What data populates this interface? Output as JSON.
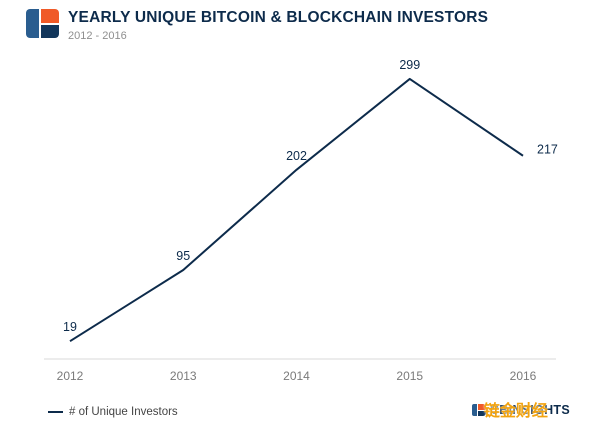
{
  "header": {
    "title": "YEARLY UNIQUE BITCOIN & BLOCKCHAIN INVESTORS",
    "subtitle": "2012 - 2016"
  },
  "chart_data": {
    "type": "line",
    "categories": [
      "2012",
      "2013",
      "2014",
      "2015",
      "2016"
    ],
    "series": [
      {
        "name": "# of Unique Investors",
        "values": [
          19,
          95,
          202,
          299,
          217
        ]
      }
    ],
    "title": "YEARLY UNIQUE BITCOIN & BLOCKCHAIN INVESTORS",
    "xlabel": "",
    "ylabel": "",
    "ylim": [
      0,
      300
    ],
    "grid": false,
    "legend_position": "bottom-left",
    "line_color": "#0d2b4b",
    "data_labels": true
  },
  "legend": {
    "label": "# of Unique Investors"
  },
  "footer": {
    "brand": "CBINSIGHTS",
    "watermark": "链金财经"
  },
  "colors": {
    "line": "#0d2b4b",
    "title": "#0d2b4b",
    "subtitle": "#8f8f8f",
    "axis": "#d8d8d8",
    "tick_label": "#7a7a7a",
    "logo_blue": "#2a5d8f",
    "logo_orange": "#f05a28",
    "logo_navy": "#12365b",
    "watermark": "#f2a30f"
  }
}
